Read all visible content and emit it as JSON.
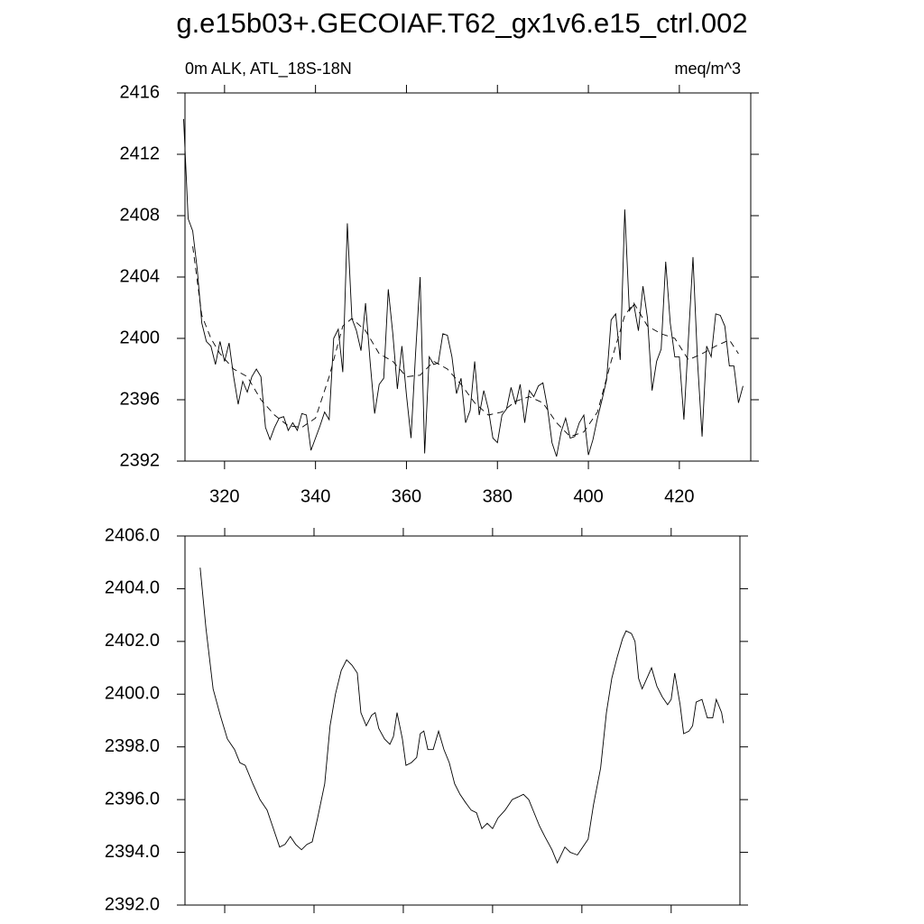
{
  "chart_data": [
    {
      "type": "line",
      "title": "g.e15b03+.GECOIAF.T62_gx1v6.e15_ctrl.002",
      "subtitle": "0m ALK, ATL_18S-18N",
      "units_label": "meq/m^3",
      "xlim": [
        311.3,
        435.7
      ],
      "xticks": [
        320,
        340,
        360,
        380,
        400,
        420
      ],
      "ylim": [
        2392,
        2416
      ],
      "yticks": [
        2392,
        2396,
        2400,
        2404,
        2408,
        2412,
        2416
      ],
      "series": [
        {
          "color": "#000000",
          "dashed": false,
          "x": [
            311,
            312,
            313,
            314,
            315,
            316,
            317,
            318,
            319,
            320,
            321,
            322,
            323,
            324,
            325,
            326,
            327,
            328,
            329,
            330,
            331,
            332,
            333,
            334,
            335,
            336,
            337,
            338,
            339,
            340,
            341,
            342,
            343,
            344,
            345,
            346,
            347,
            348,
            349,
            350,
            351,
            352,
            353,
            354,
            355,
            356,
            357,
            358,
            359,
            360,
            361,
            362,
            363,
            364,
            365,
            366,
            367,
            368,
            369,
            370,
            371,
            372,
            373,
            374,
            375,
            376,
            377,
            378,
            379,
            380,
            381,
            382,
            383,
            384,
            385,
            386,
            387,
            388,
            389,
            390,
            391,
            392,
            393,
            394,
            395,
            396,
            397,
            398,
            399,
            400,
            401,
            402,
            403,
            404,
            405,
            406,
            407,
            408,
            409,
            410,
            411,
            412,
            413,
            414,
            415,
            416,
            417,
            418,
            419,
            420,
            421,
            422,
            423,
            424,
            425,
            426,
            427,
            428,
            429,
            430,
            431,
            432,
            433,
            434
          ],
          "values": [
            2414.3,
            2407.8,
            2407.0,
            2404.5,
            2401.0,
            2399.8,
            2399.5,
            2398.3,
            2399.8,
            2398.5,
            2399.7,
            2397.5,
            2395.7,
            2397.2,
            2396.5,
            2397.5,
            2398.0,
            2397.5,
            2394.2,
            2393.4,
            2394.2,
            2394.8,
            2394.9,
            2394.0,
            2394.5,
            2394.0,
            2395.1,
            2395.0,
            2392.7,
            2393.5,
            2394.3,
            2395.2,
            2394.7,
            2400.0,
            2400.6,
            2397.8,
            2407.5,
            2401.3,
            2400.5,
            2399.2,
            2402.3,
            2398.5,
            2395.1,
            2397.0,
            2397.4,
            2403.2,
            2400.3,
            2396.7,
            2399.5,
            2396.3,
            2393.5,
            2399.0,
            2404.0,
            2392.5,
            2398.8,
            2398.3,
            2398.4,
            2400.3,
            2400.2,
            2398.8,
            2396.4,
            2397.4,
            2394.5,
            2395.3,
            2398.5,
            2395.0,
            2396.6,
            2395.4,
            2393.5,
            2393.2,
            2395.0,
            2395.4,
            2396.8,
            2395.7,
            2397.0,
            2394.5,
            2396.6,
            2396.2,
            2396.9,
            2397.1,
            2395.5,
            2393.2,
            2392.3,
            2393.9,
            2394.8,
            2393.5,
            2393.6,
            2394.5,
            2395.0,
            2392.4,
            2393.4,
            2394.8,
            2396.0,
            2397.3,
            2401.2,
            2401.6,
            2398.6,
            2408.4,
            2401.8,
            2402.2,
            2400.5,
            2403.4,
            2401.3,
            2396.6,
            2398.5,
            2399.3,
            2405.0,
            2401.0,
            2398.8,
            2398.8,
            2394.7,
            2400.0,
            2405.3,
            2398.5,
            2393.6,
            2399.5,
            2398.8,
            2401.6,
            2401.5,
            2400.8,
            2398.2,
            2398.2,
            2395.8,
            2396.9
          ]
        },
        {
          "color": "#000000",
          "dashed": true,
          "x": [
            313,
            315,
            317,
            319,
            322,
            325,
            328,
            331,
            334,
            337,
            340,
            343,
            346,
            348,
            351,
            354,
            357,
            360,
            363,
            366,
            369,
            372,
            375,
            378,
            381,
            384,
            387,
            390,
            393,
            396,
            399,
            402,
            405,
            408,
            410,
            413,
            416,
            419,
            422,
            425,
            428,
            431,
            433
          ],
          "values": [
            2406.0,
            2401.5,
            2400.0,
            2399.0,
            2398.0,
            2397.5,
            2396.0,
            2395.0,
            2394.3,
            2394.2,
            2394.8,
            2397.5,
            2400.8,
            2401.3,
            2400.5,
            2399.0,
            2398.5,
            2397.5,
            2397.6,
            2398.5,
            2398.0,
            2397.0,
            2395.8,
            2395.0,
            2395.2,
            2395.9,
            2396.2,
            2395.8,
            2394.5,
            2393.6,
            2393.9,
            2395.2,
            2398.5,
            2401.5,
            2402.3,
            2400.8,
            2400.3,
            2400.0,
            2398.6,
            2399.0,
            2399.5,
            2399.9,
            2399.0
          ]
        }
      ]
    },
    {
      "type": "line",
      "xlim": [
        311.1,
        435.4
      ],
      "xticks": [
        320,
        340,
        360,
        380,
        400,
        420
      ],
      "ylim": [
        2392,
        2406
      ],
      "yticks": [
        {
          "value": 2392,
          "label": "2392.0"
        },
        {
          "value": 2394,
          "label": "2394.0"
        },
        {
          "value": 2396,
          "label": "2396.0"
        },
        {
          "value": 2398,
          "label": "2398.0"
        },
        {
          "value": 2400,
          "label": "2400.0"
        },
        {
          "value": 2402,
          "label": "2402.0"
        },
        {
          "value": 2404,
          "label": "2404.0"
        },
        {
          "value": 2406,
          "label": "2406.0"
        }
      ],
      "series": [
        {
          "color": "#000000",
          "dashed": false,
          "x": [
            314.5,
            315.8,
            317.4,
            319,
            320.6,
            322.2,
            323.4,
            324.6,
            326.3,
            327.9,
            329.5,
            330.7,
            332.3,
            333.5,
            334.7,
            335.9,
            337.2,
            338.4,
            339.6,
            340.8,
            342.4,
            343.6,
            344.8,
            346.1,
            347.3,
            348.5,
            349.7,
            350.5,
            351.7,
            352.9,
            353.7,
            354.5,
            355.8,
            357,
            357.8,
            358.6,
            359.8,
            360.6,
            361.8,
            363,
            363.8,
            364.6,
            365.5,
            366.7,
            367.9,
            369.1,
            370.3,
            371.5,
            372.7,
            373.9,
            375.2,
            376.4,
            377.6,
            378.8,
            380,
            381.2,
            382.8,
            384.4,
            385.7,
            386.9,
            388.1,
            389.3,
            390.5,
            391.7,
            393.3,
            394.5,
            396.2,
            397.4,
            399,
            400.2,
            401.4,
            402.6,
            404.2,
            405.5,
            406.7,
            407.9,
            409.1,
            409.9,
            411.1,
            411.9,
            412.7,
            413.5,
            414.3,
            415.6,
            416.8,
            418,
            419.2,
            420,
            420.8,
            422,
            422.8,
            424,
            424.8,
            425.6,
            426.9,
            428.1,
            429.3,
            430.1,
            431.3,
            431.7
          ],
          "values": [
            2404.8,
            2402.5,
            2400.2,
            2399.2,
            2398.3,
            2397.9,
            2397.4,
            2397.3,
            2396.6,
            2396.0,
            2395.6,
            2395.0,
            2394.2,
            2394.3,
            2394.6,
            2394.3,
            2394.1,
            2394.3,
            2394.4,
            2395.3,
            2396.6,
            2398.8,
            2400.0,
            2400.9,
            2401.3,
            2401.1,
            2400.8,
            2399.3,
            2398.8,
            2399.2,
            2399.3,
            2398.7,
            2398.3,
            2398.1,
            2398.4,
            2399.3,
            2398.3,
            2397.3,
            2397.4,
            2397.6,
            2398.5,
            2398.6,
            2397.9,
            2397.9,
            2398.6,
            2397.9,
            2397.4,
            2396.6,
            2396.2,
            2395.9,
            2395.6,
            2395.5,
            2394.9,
            2395.1,
            2394.9,
            2395.3,
            2395.6,
            2396.0,
            2396.1,
            2396.2,
            2396.0,
            2395.5,
            2395.0,
            2394.6,
            2394.1,
            2393.6,
            2394.2,
            2394.0,
            2393.9,
            2394.2,
            2394.5,
            2395.8,
            2397.2,
            2399.3,
            2400.6,
            2401.4,
            2402.1,
            2402.4,
            2402.3,
            2402.0,
            2400.6,
            2400.2,
            2400.5,
            2401.0,
            2400.3,
            2399.9,
            2399.6,
            2399.8,
            2400.8,
            2399.6,
            2398.5,
            2398.6,
            2398.8,
            2399.7,
            2399.8,
            2399.1,
            2399.1,
            2399.8,
            2399.3,
            2398.9
          ]
        }
      ]
    }
  ]
}
